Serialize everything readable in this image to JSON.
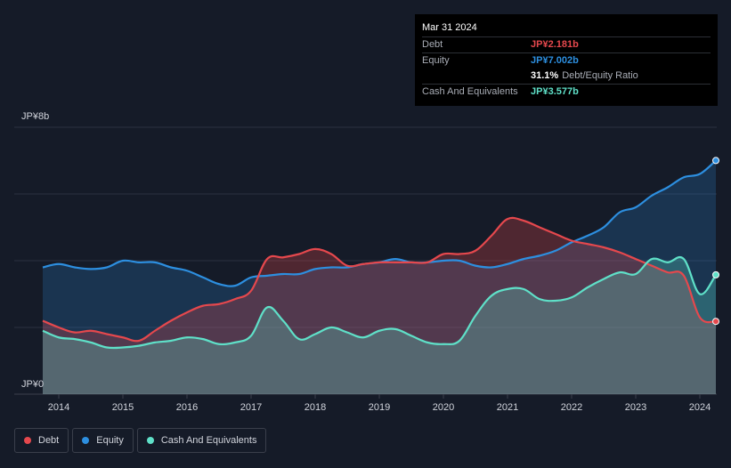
{
  "tooltip": {
    "date": "Mar 31 2024",
    "rows": [
      {
        "label": "Debt",
        "value": "JP¥2.181b",
        "color": "#e5484d"
      },
      {
        "label": "Equity",
        "value": "JP¥7.002b",
        "color": "#2d8fe0"
      },
      {
        "label": "",
        "value": "31.1%",
        "note": "Debt/Equity Ratio",
        "color": "#ffffff"
      },
      {
        "label": "Cash And Equivalents",
        "value": "JP¥3.577b",
        "color": "#5fe0c8"
      }
    ]
  },
  "legend": [
    {
      "label": "Debt",
      "color": "#e5484d"
    },
    {
      "label": "Equity",
      "color": "#2d8fe0"
    },
    {
      "label": "Cash And Equivalents",
      "color": "#5fe0c8"
    }
  ],
  "chart_data": {
    "type": "area",
    "ylim": [
      0,
      8
    ],
    "y_unit": "JP¥ billions",
    "y_tick_labels": [
      {
        "value": 8,
        "label": "JP¥8b"
      },
      {
        "value": 0,
        "label": "JP¥0"
      }
    ],
    "x_ticks": [
      2014,
      2015,
      2016,
      2017,
      2018,
      2019,
      2020,
      2021,
      2022,
      2023,
      2024
    ],
    "x_range": [
      2013.75,
      2024.25
    ],
    "grid": true,
    "series": [
      {
        "name": "Debt",
        "color": "#e5484d",
        "x": [
          2013.75,
          2014.0,
          2014.25,
          2014.5,
          2014.75,
          2015.0,
          2015.25,
          2015.5,
          2015.75,
          2016.0,
          2016.25,
          2016.5,
          2016.75,
          2017.0,
          2017.25,
          2017.5,
          2017.75,
          2018.0,
          2018.25,
          2018.5,
          2018.75,
          2019.0,
          2019.25,
          2019.5,
          2019.75,
          2020.0,
          2020.25,
          2020.5,
          2020.75,
          2021.0,
          2021.25,
          2021.5,
          2021.75,
          2022.0,
          2022.25,
          2022.5,
          2022.75,
          2023.0,
          2023.25,
          2023.5,
          2023.75,
          2024.0,
          2024.25
        ],
        "values": [
          2.2,
          2.0,
          1.85,
          1.9,
          1.8,
          1.7,
          1.6,
          1.9,
          2.2,
          2.45,
          2.65,
          2.7,
          2.85,
          3.1,
          4.05,
          4.1,
          4.2,
          4.35,
          4.2,
          3.85,
          3.9,
          3.95,
          3.95,
          3.95,
          3.95,
          4.2,
          4.2,
          4.3,
          4.75,
          5.25,
          5.2,
          5.0,
          4.8,
          4.6,
          4.5,
          4.4,
          4.25,
          4.05,
          3.85,
          3.65,
          3.55,
          2.3,
          2.181
        ]
      },
      {
        "name": "Equity",
        "color": "#2d8fe0",
        "x": [
          2013.75,
          2014.0,
          2014.25,
          2014.5,
          2014.75,
          2015.0,
          2015.25,
          2015.5,
          2015.75,
          2016.0,
          2016.25,
          2016.5,
          2016.75,
          2017.0,
          2017.25,
          2017.5,
          2017.75,
          2018.0,
          2018.25,
          2018.5,
          2018.75,
          2019.0,
          2019.25,
          2019.5,
          2019.75,
          2020.0,
          2020.25,
          2020.5,
          2020.75,
          2021.0,
          2021.25,
          2021.5,
          2021.75,
          2022.0,
          2022.25,
          2022.5,
          2022.75,
          2023.0,
          2023.25,
          2023.5,
          2023.75,
          2024.0,
          2024.25
        ],
        "values": [
          3.8,
          3.9,
          3.8,
          3.75,
          3.8,
          4.0,
          3.95,
          3.95,
          3.8,
          3.7,
          3.5,
          3.3,
          3.25,
          3.5,
          3.55,
          3.6,
          3.6,
          3.75,
          3.8,
          3.8,
          3.9,
          3.95,
          4.05,
          3.95,
          3.95,
          4.0,
          4.0,
          3.85,
          3.8,
          3.9,
          4.05,
          4.15,
          4.3,
          4.55,
          4.75,
          5.0,
          5.45,
          5.6,
          5.95,
          6.2,
          6.5,
          6.6,
          7.002
        ]
      },
      {
        "name": "Cash And Equivalents",
        "color": "#5fe0c8",
        "x": [
          2013.75,
          2014.0,
          2014.25,
          2014.5,
          2014.75,
          2015.0,
          2015.25,
          2015.5,
          2015.75,
          2016.0,
          2016.25,
          2016.5,
          2016.75,
          2017.0,
          2017.25,
          2017.5,
          2017.75,
          2018.0,
          2018.25,
          2018.5,
          2018.75,
          2019.0,
          2019.25,
          2019.5,
          2019.75,
          2020.0,
          2020.25,
          2020.5,
          2020.75,
          2021.0,
          2021.25,
          2021.5,
          2021.75,
          2022.0,
          2022.25,
          2022.5,
          2022.75,
          2023.0,
          2023.25,
          2023.5,
          2023.75,
          2024.0,
          2024.25
        ],
        "values": [
          1.9,
          1.7,
          1.65,
          1.55,
          1.4,
          1.4,
          1.45,
          1.55,
          1.6,
          1.7,
          1.65,
          1.5,
          1.55,
          1.75,
          2.6,
          2.2,
          1.65,
          1.8,
          2.0,
          1.85,
          1.7,
          1.9,
          1.95,
          1.75,
          1.55,
          1.5,
          1.6,
          2.35,
          2.95,
          3.15,
          3.15,
          2.85,
          2.8,
          2.9,
          3.2,
          3.45,
          3.65,
          3.6,
          4.05,
          3.95,
          4.05,
          3.0,
          3.577
        ]
      }
    ]
  }
}
